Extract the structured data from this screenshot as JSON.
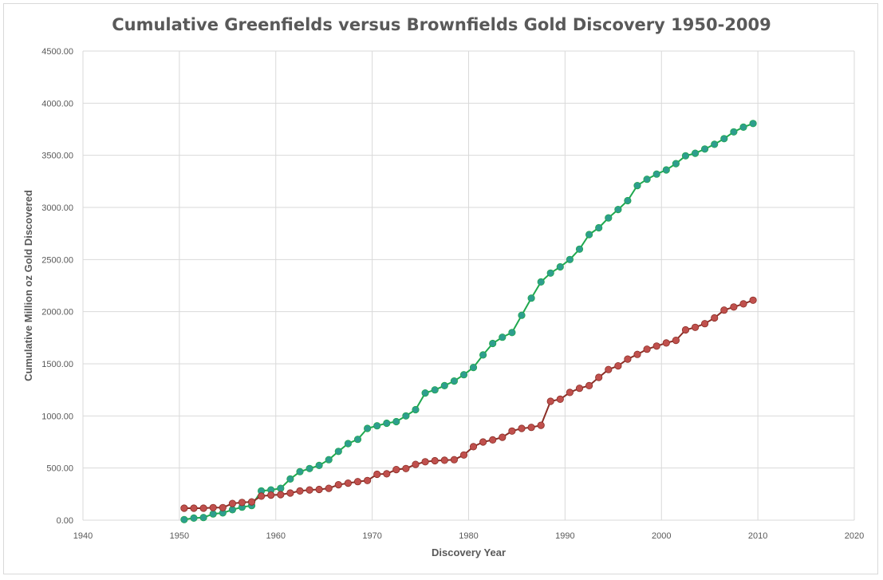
{
  "chart_data": {
    "type": "line",
    "title": "Cumulative Greenfields versus Brownfields Gold Discovery 1950-2009",
    "xlabel": "Discovery Year",
    "ylabel": "Cumulative Million oz Gold Discovered",
    "xlim": [
      1940,
      2020
    ],
    "ylim": [
      0,
      4500
    ],
    "xticks": [
      "1940",
      "1950",
      "1960",
      "1970",
      "1980",
      "1990",
      "2000",
      "2010",
      "2020"
    ],
    "yticks": [
      "0.00",
      "500.00",
      "1000.00",
      "1500.00",
      "2000.00",
      "2500.00",
      "3000.00",
      "3500.00",
      "4000.00",
      "4500.00"
    ],
    "grid": true,
    "legend": "none",
    "x": [
      1950.5,
      1951.5,
      1952.5,
      1953.5,
      1954.5,
      1955.5,
      1956.5,
      1957.5,
      1958.5,
      1959.5,
      1960.5,
      1961.5,
      1962.5,
      1963.5,
      1964.5,
      1965.5,
      1966.5,
      1967.5,
      1968.5,
      1969.5,
      1970.5,
      1971.5,
      1972.5,
      1973.5,
      1974.5,
      1975.5,
      1976.5,
      1977.5,
      1978.5,
      1979.5,
      1980.5,
      1981.5,
      1982.5,
      1983.5,
      1984.5,
      1985.5,
      1986.5,
      1987.5,
      1988.5,
      1989.5,
      1990.5,
      1991.5,
      1992.5,
      1993.5,
      1994.5,
      1995.5,
      1996.5,
      1997.5,
      1998.5,
      1999.5,
      2000.5,
      2001.5,
      2002.5,
      2003.5,
      2004.5,
      2005.5,
      2006.5,
      2007.5,
      2008.5,
      2009.5
    ],
    "series": [
      {
        "color": "#2e9e8e",
        "line_color": "#1fa84e",
        "values": [
          5,
          20,
          25,
          60,
          70,
          100,
          125,
          140,
          280,
          290,
          305,
          395,
          465,
          495,
          525,
          580,
          660,
          735,
          775,
          880,
          905,
          930,
          945,
          1000,
          1060,
          1220,
          1250,
          1290,
          1335,
          1395,
          1465,
          1585,
          1695,
          1755,
          1800,
          1965,
          2130,
          2285,
          2370,
          2430,
          2500,
          2600,
          2740,
          2805,
          2900,
          2980,
          3065,
          3210,
          3270,
          3320,
          3360,
          3420,
          3495,
          3520,
          3560,
          3605,
          3660,
          3725,
          3770,
          3805
        ]
      },
      {
        "color": "#c0504d",
        "line_color": "#8b2e26",
        "values": [
          115,
          115,
          115,
          120,
          120,
          160,
          170,
          175,
          230,
          240,
          245,
          260,
          280,
          290,
          295,
          305,
          340,
          355,
          370,
          380,
          440,
          445,
          485,
          495,
          535,
          560,
          570,
          575,
          580,
          625,
          705,
          750,
          770,
          795,
          855,
          880,
          890,
          910,
          1140,
          1160,
          1225,
          1265,
          1290,
          1370,
          1445,
          1480,
          1545,
          1590,
          1640,
          1670,
          1700,
          1725,
          1825,
          1850,
          1885,
          1940,
          2015,
          2045,
          2075,
          2110
        ]
      }
    ]
  }
}
